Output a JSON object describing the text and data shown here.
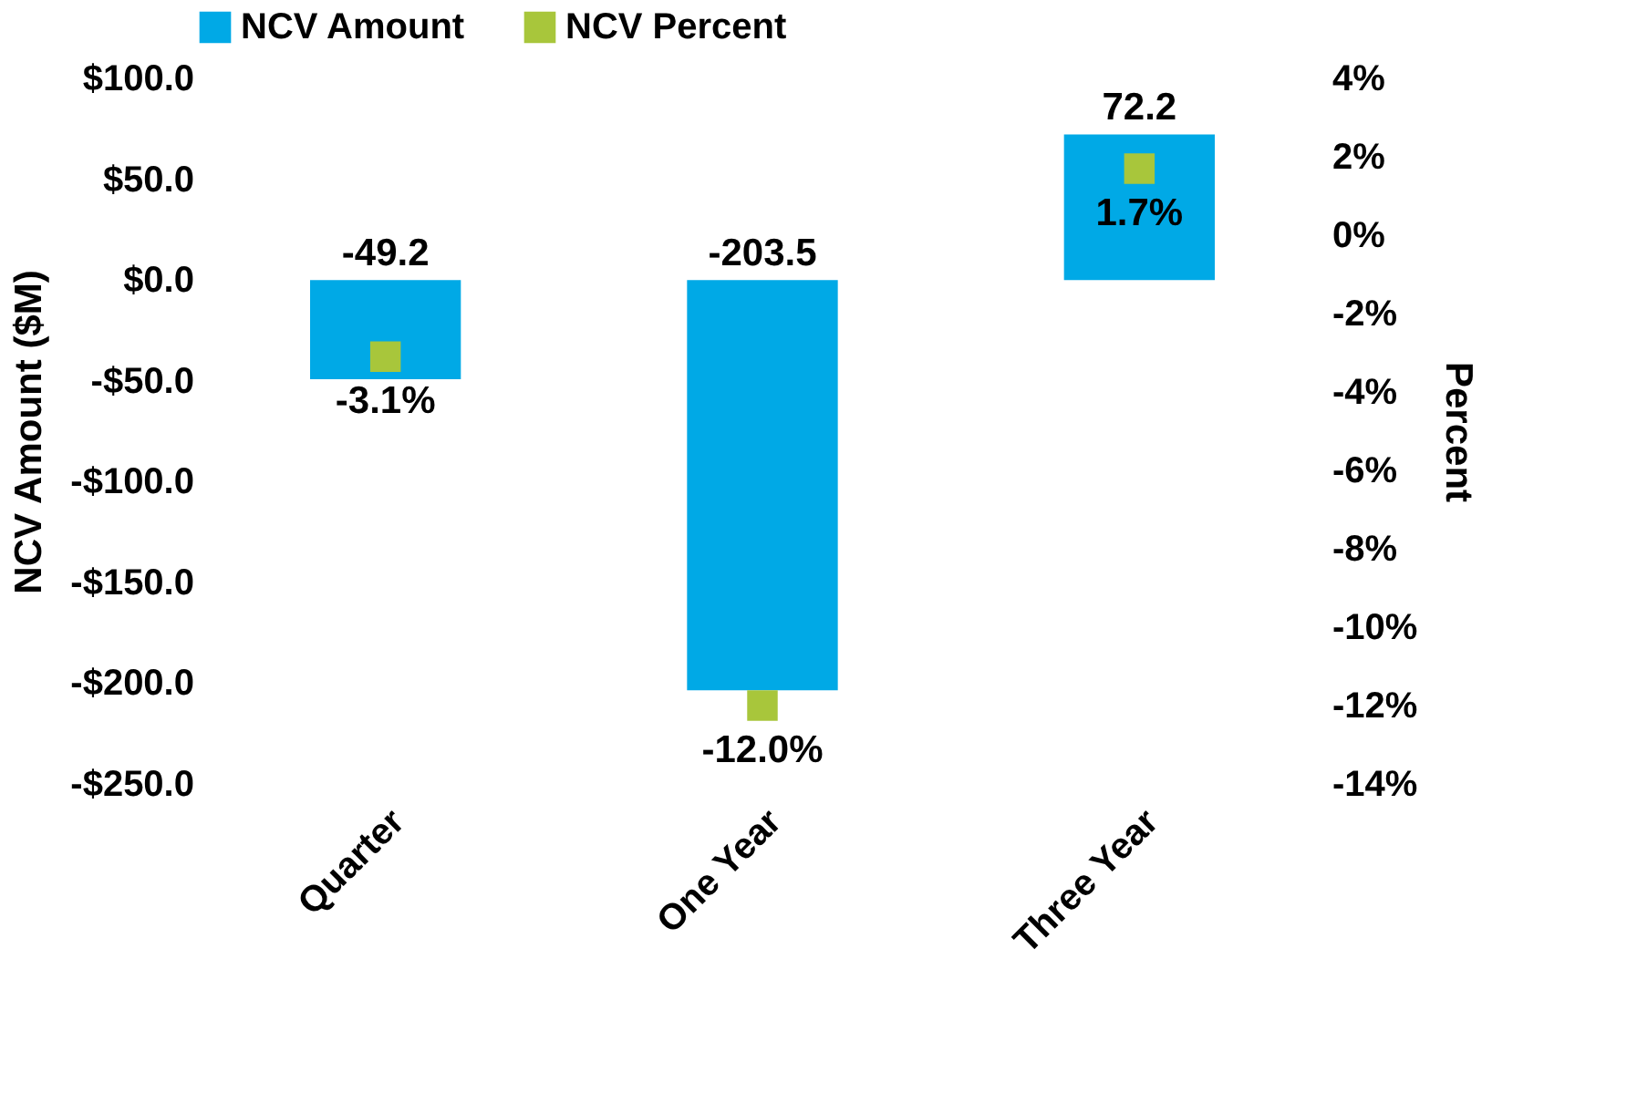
{
  "chart_data": {
    "type": "bar",
    "categories": [
      "Quarter",
      "One Year",
      "Three Year"
    ],
    "ylabel": "NCV Amount ($M)",
    "y2label": "Percent",
    "ylim": [
      -250,
      100
    ],
    "yticks": [
      {
        "value": 100,
        "label": "$100.0"
      },
      {
        "value": 50,
        "label": "$50.0"
      },
      {
        "value": 0,
        "label": "$0.0"
      },
      {
        "value": -50,
        "label": "-$50.0"
      },
      {
        "value": -100,
        "label": "-$100.0"
      },
      {
        "value": -150,
        "label": "-$150.0"
      },
      {
        "value": -200,
        "label": "-$200.0"
      },
      {
        "value": -250,
        "label": "-$250.0"
      }
    ],
    "y2lim": [
      -14,
      4
    ],
    "y2ticks": [
      {
        "value": 4,
        "label": "4%"
      },
      {
        "value": 2,
        "label": "2%"
      },
      {
        "value": 0,
        "label": "0%"
      },
      {
        "value": -2,
        "label": "-2%"
      },
      {
        "value": -4,
        "label": "-4%"
      },
      {
        "value": -6,
        "label": "-6%"
      },
      {
        "value": -8,
        "label": "-8%"
      },
      {
        "value": -10,
        "label": "-10%"
      },
      {
        "value": -12,
        "label": "-12%"
      },
      {
        "value": -14,
        "label": "-14%"
      }
    ],
    "legend": "top",
    "grid": false,
    "series": [
      {
        "name": "NCV Amount",
        "color": "#00a9e6",
        "values": [
          -49.2,
          -203.5,
          72.2
        ],
        "value_labels": [
          "-49.2",
          "-203.5",
          "72.2"
        ]
      },
      {
        "name": "NCV Percent",
        "type": "scatter",
        "axis": "y2",
        "marker": "square",
        "color": "#a8c63b",
        "values": [
          -3.1,
          -12.0,
          1.7
        ],
        "value_labels": [
          "-3.1%",
          "-12.0%",
          "1.7%"
        ]
      }
    ]
  }
}
